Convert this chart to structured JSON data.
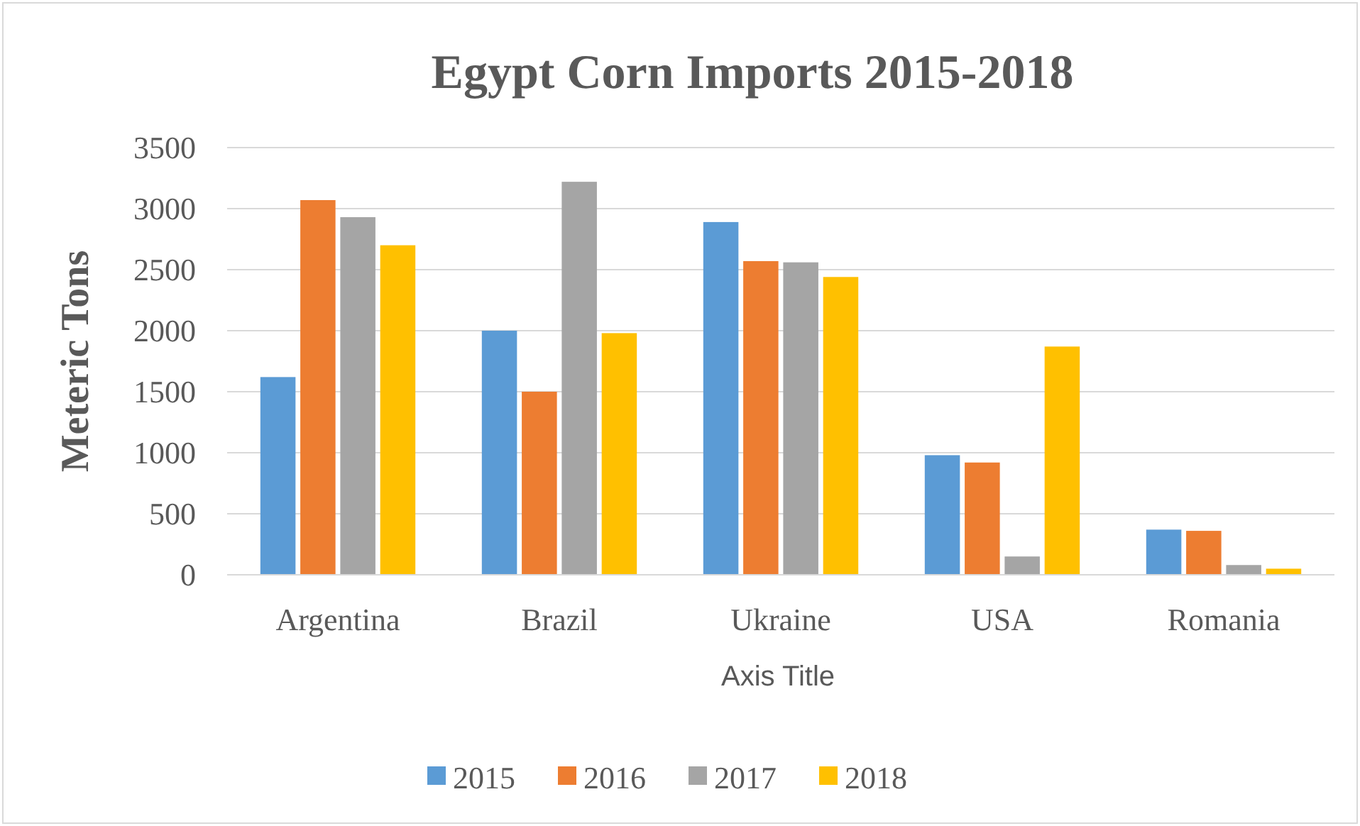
{
  "chart_data": {
    "type": "bar",
    "title": "Egypt Corn Imports 2015-2018",
    "xlabel": "Axis Title",
    "ylabel": "Meteric Tons",
    "categories": [
      "Argentina",
      "Brazil",
      "Ukraine",
      "USA",
      "Romania"
    ],
    "series": [
      {
        "name": "2015",
        "color": "#5b9bd5",
        "values": [
          1620,
          2000,
          2890,
          980,
          370
        ]
      },
      {
        "name": "2016",
        "color": "#ed7d31",
        "values": [
          3070,
          1500,
          2570,
          920,
          360
        ]
      },
      {
        "name": "2017",
        "color": "#a5a5a5",
        "values": [
          2930,
          3220,
          2560,
          150,
          80
        ]
      },
      {
        "name": "2018",
        "color": "#ffc000",
        "values": [
          2700,
          1980,
          2440,
          1870,
          50
        ]
      }
    ],
    "ylim": [
      0,
      3500
    ],
    "yticks": [
      0,
      500,
      1000,
      1500,
      2000,
      2500,
      3000,
      3500
    ],
    "grid": "y",
    "legend": "bottom"
  }
}
